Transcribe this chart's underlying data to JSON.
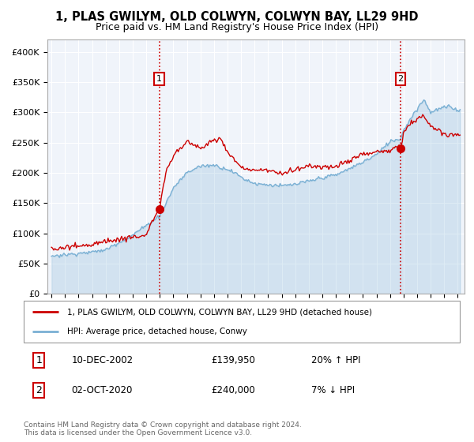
{
  "title": "1, PLAS GWILYM, OLD COLWYN, COLWYN BAY, LL29 9HD",
  "subtitle": "Price paid vs. HM Land Registry's House Price Index (HPI)",
  "ylabel_ticks": [
    "£0",
    "£50K",
    "£100K",
    "£150K",
    "£200K",
    "£250K",
    "£300K",
    "£350K",
    "£400K"
  ],
  "ytick_values": [
    0,
    50000,
    100000,
    150000,
    200000,
    250000,
    300000,
    350000,
    400000
  ],
  "ylim": [
    0,
    420000
  ],
  "xlim_start": 1994.7,
  "xlim_end": 2025.5,
  "xtick_years": [
    1995,
    1996,
    1997,
    1998,
    1999,
    2000,
    2001,
    2002,
    2003,
    2004,
    2005,
    2006,
    2007,
    2008,
    2009,
    2010,
    2011,
    2012,
    2013,
    2014,
    2015,
    2016,
    2017,
    2018,
    2019,
    2020,
    2021,
    2022,
    2023,
    2024,
    2025
  ],
  "legend1_label": "1, PLAS GWILYM, OLD COLWYN, COLWYN BAY, LL29 9HD (detached house)",
  "legend2_label": "HPI: Average price, detached house, Conwy",
  "legend1_color": "#cc0000",
  "legend2_color": "#7ab0d4",
  "marker1_date": 2002.96,
  "marker1_price": 139950,
  "marker1_label": "1",
  "marker2_date": 2020.77,
  "marker2_price": 240000,
  "marker2_label": "2",
  "vline_color": "#cc0000",
  "background_color": "#ffffff",
  "plot_bg_color": "#f0f4fa",
  "grid_color": "#ffffff",
  "hpi_line_color": "#7ab0d4",
  "price_line_color": "#cc0000",
  "footnote": "Contains HM Land Registry data © Crown copyright and database right 2024.\nThis data is licensed under the Open Government Licence v3.0."
}
